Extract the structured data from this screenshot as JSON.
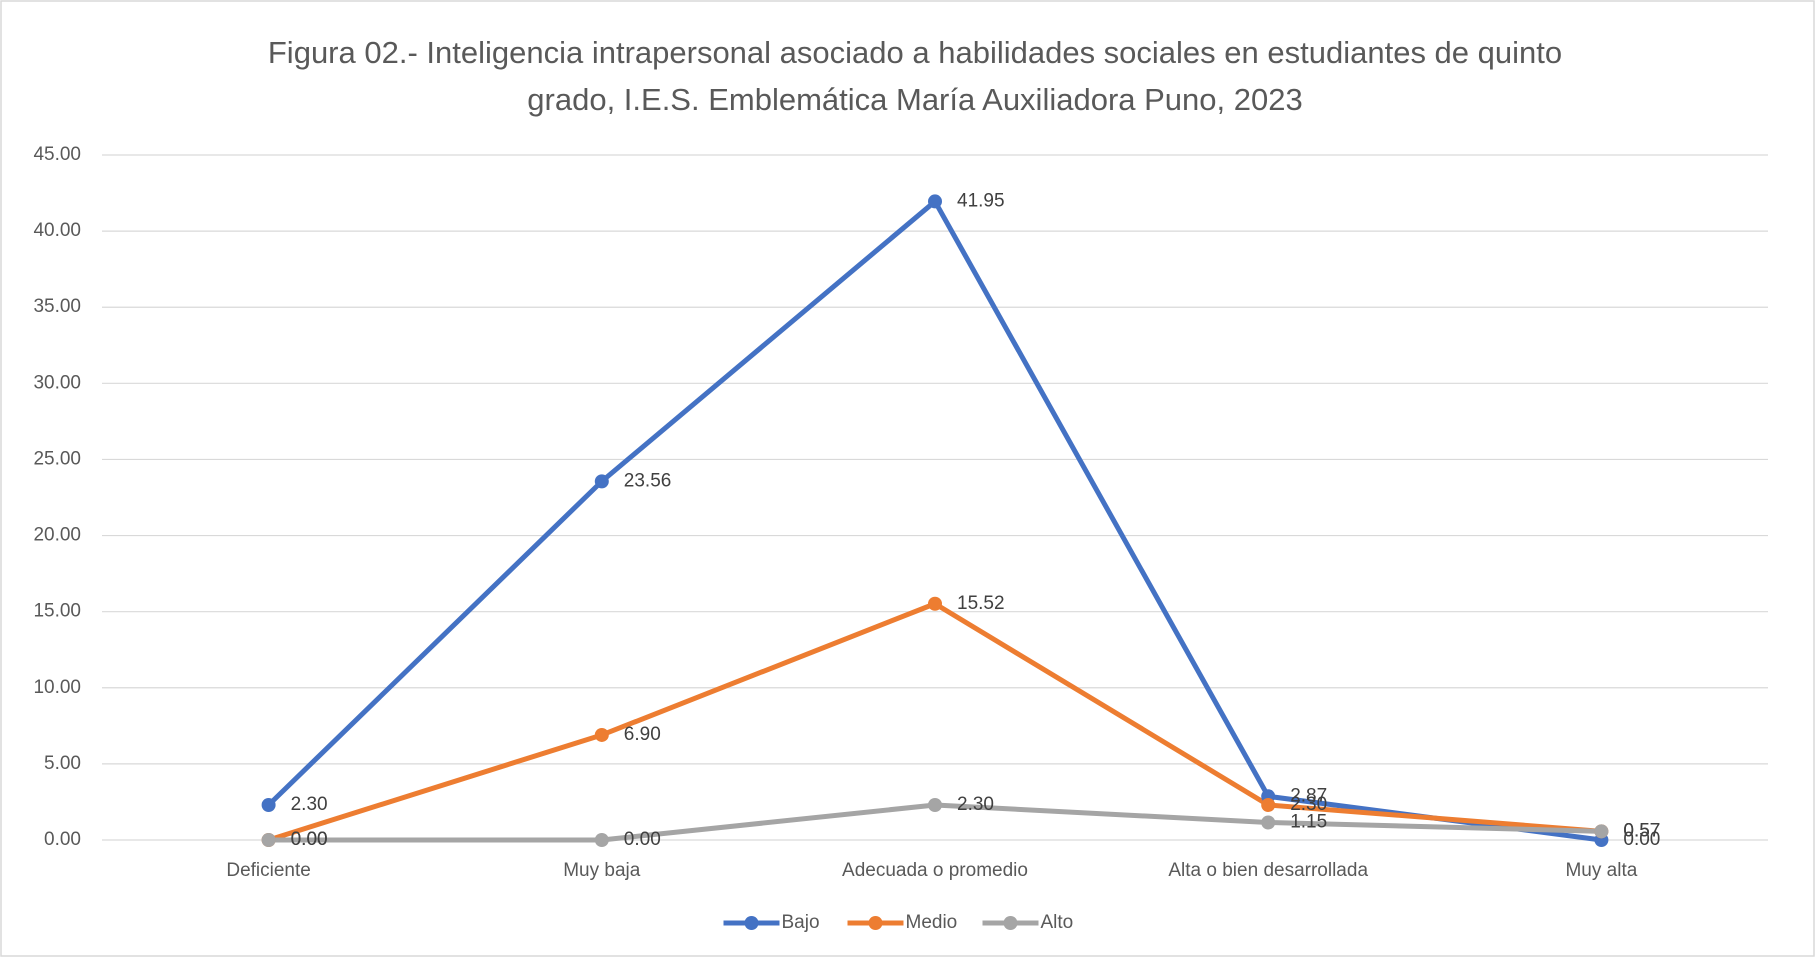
{
  "chart_data": {
    "type": "line",
    "title": "Figura 02.- Inteligencia intrapersonal asociado a habilidades sociales en estudiantes de quinto",
    "subtitle": "grado, I.E.S. Emblemática María Auxiliadora Puno, 2023",
    "categories": [
      "Deficiente",
      "Muy baja",
      "Adecuada o promedio",
      "Alta o bien desarrollada",
      "Muy alta"
    ],
    "series": [
      {
        "name": "Bajo",
        "color": "#4472c4",
        "values": [
          2.3,
          23.56,
          41.95,
          2.87,
          0.0
        ],
        "value_labels": [
          "2.30",
          "23.56",
          "41.95",
          "2.87",
          "0.00"
        ]
      },
      {
        "name": "Medio",
        "color": "#ed7d31",
        "values": [
          0.0,
          6.9,
          15.52,
          2.3,
          0.57
        ],
        "value_labels": [
          "0.00",
          "6.90",
          "15.52",
          "2.30",
          "0.57"
        ]
      },
      {
        "name": "Alto",
        "color": "#a5a5a5",
        "values": [
          0.0,
          0.0,
          2.3,
          1.15,
          0.57
        ],
        "value_labels": [
          "0.00",
          "0.00",
          "2.30",
          "1.15",
          "0.57"
        ]
      }
    ],
    "ylim": [
      0,
      45
    ],
    "yticks": [
      {
        "value": 0,
        "label": "0.00"
      },
      {
        "value": 5,
        "label": "5.00"
      },
      {
        "value": 10,
        "label": "10.00"
      },
      {
        "value": 15,
        "label": "15.00"
      },
      {
        "value": 20,
        "label": "20.00"
      },
      {
        "value": 25,
        "label": "25.00"
      },
      {
        "value": 30,
        "label": "30.00"
      },
      {
        "value": 35,
        "label": "35.00"
      },
      {
        "value": 40,
        "label": "40.00"
      },
      {
        "value": 45,
        "label": "45.00"
      }
    ],
    "grid": true,
    "legend": "bottom"
  }
}
